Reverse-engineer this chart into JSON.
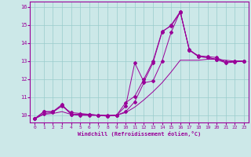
{
  "xlabel": "Windchill (Refroidissement éolien,°C)",
  "bg_color": "#cce8e8",
  "line_color": "#990099",
  "grid_color": "#99cccc",
  "xlim": [
    -0.5,
    23.5
  ],
  "ylim": [
    9.6,
    16.3
  ],
  "xticks": [
    0,
    1,
    2,
    3,
    4,
    5,
    6,
    7,
    8,
    9,
    10,
    11,
    12,
    13,
    14,
    15,
    16,
    17,
    18,
    19,
    20,
    21,
    22,
    23
  ],
  "yticks": [
    10,
    11,
    12,
    13,
    14,
    15,
    16
  ],
  "line1_x": [
    0,
    1,
    2,
    3,
    4,
    5,
    6,
    7,
    8,
    9,
    10,
    11,
    12,
    13,
    14,
    15,
    16,
    17,
    18,
    19,
    20,
    21,
    22,
    23
  ],
  "line1_y": [
    9.8,
    10.2,
    10.2,
    10.6,
    10.05,
    10.05,
    10.05,
    10.0,
    9.95,
    10.0,
    10.5,
    12.9,
    11.85,
    12.9,
    14.6,
    15.0,
    15.75,
    13.6,
    13.3,
    13.25,
    13.2,
    12.95,
    13.0,
    13.0
  ],
  "line2_x": [
    0,
    1,
    2,
    3,
    4,
    5,
    6,
    7,
    8,
    9,
    10,
    11,
    12,
    13,
    14,
    15,
    16,
    17,
    18,
    19,
    20,
    21,
    22,
    23
  ],
  "line2_y": [
    9.8,
    10.2,
    10.2,
    10.5,
    10.15,
    10.1,
    10.05,
    10.0,
    10.0,
    10.0,
    10.7,
    11.05,
    12.0,
    13.0,
    14.65,
    14.95,
    15.7,
    13.65,
    13.25,
    13.2,
    13.1,
    12.95,
    13.0,
    13.0
  ],
  "line3_x": [
    0,
    1,
    2,
    3,
    4,
    5,
    6,
    7,
    8,
    9,
    10,
    11,
    12,
    13,
    14,
    15,
    16,
    17,
    18,
    19,
    20,
    21,
    22,
    23
  ],
  "line3_y": [
    9.8,
    10.1,
    10.15,
    10.55,
    10.05,
    10.0,
    10.0,
    10.0,
    9.95,
    10.0,
    10.2,
    10.75,
    11.8,
    11.9,
    13.0,
    14.6,
    15.75,
    13.6,
    13.25,
    13.2,
    13.1,
    12.9,
    12.95,
    13.0
  ],
  "line4_x": [
    0,
    1,
    2,
    3,
    4,
    5,
    6,
    7,
    8,
    9,
    10,
    11,
    12,
    13,
    14,
    15,
    16,
    17,
    18,
    19,
    20,
    21,
    22,
    23
  ],
  "line4_y": [
    9.8,
    10.05,
    10.1,
    10.2,
    10.05,
    10.02,
    10.0,
    10.0,
    9.98,
    10.0,
    10.15,
    10.45,
    10.85,
    11.3,
    11.8,
    12.4,
    13.05,
    13.05,
    13.05,
    13.1,
    13.1,
    13.05,
    13.0,
    13.0
  ]
}
